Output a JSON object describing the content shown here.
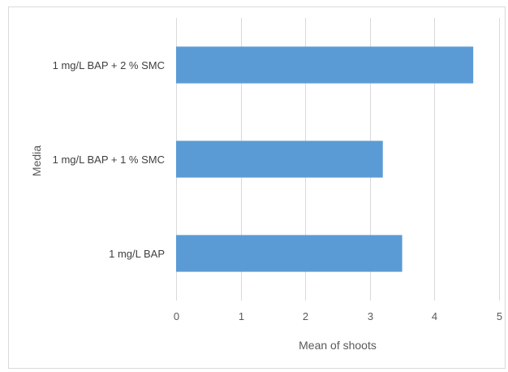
{
  "chart_data": {
    "type": "bar",
    "orientation": "horizontal",
    "categories": [
      "1 mg/L BAP + 2 % SMC",
      "1 mg/L BAP + 1 % SMC",
      "1 mg/L BAP"
    ],
    "values": [
      4.6,
      3.2,
      3.5
    ],
    "xlabel": "Mean of shoots",
    "ylabel": "Media",
    "xlim": [
      0,
      5
    ],
    "xticks": [
      "0",
      "1",
      "2",
      "3",
      "4",
      "5"
    ],
    "grid": "vertical",
    "legend": "none",
    "bar_color": "#5b9bd5"
  }
}
